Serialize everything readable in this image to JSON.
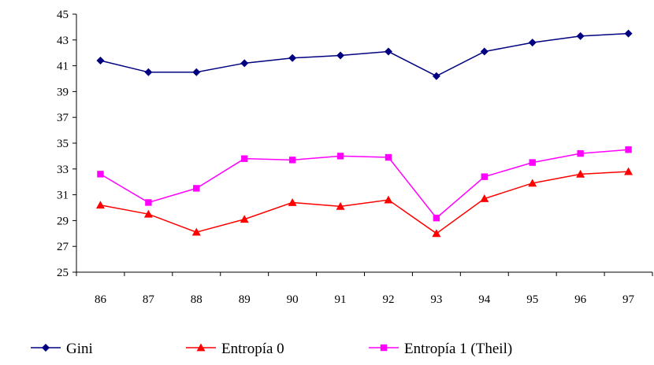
{
  "chart_data": {
    "type": "line",
    "title": "",
    "xlabel": "",
    "ylabel": "",
    "categories": [
      "86",
      "87",
      "88",
      "89",
      "90",
      "91",
      "92",
      "93",
      "94",
      "95",
      "96",
      "97"
    ],
    "ylim": [
      25,
      45
    ],
    "yticks": [
      "25",
      "27",
      "29",
      "31",
      "33",
      "35",
      "37",
      "39",
      "41",
      "43",
      "45"
    ],
    "grid": false,
    "legend_position": "bottom",
    "series": [
      {
        "name": "Gini",
        "color": "#000080",
        "marker": "diamond",
        "values": [
          41.4,
          40.5,
          40.5,
          41.2,
          41.6,
          41.8,
          42.1,
          40.2,
          42.1,
          42.8,
          43.3,
          43.5
        ]
      },
      {
        "name": "Entropía 0",
        "color": "#ff0000",
        "marker": "triangle",
        "values": [
          30.2,
          29.5,
          28.1,
          29.1,
          30.4,
          30.1,
          30.6,
          28.0,
          30.7,
          31.9,
          32.6,
          32.8
        ]
      },
      {
        "name": "Entropía 1 (Theil)",
        "color": "#ff00ff",
        "marker": "square",
        "values": [
          32.6,
          30.4,
          31.5,
          33.8,
          33.7,
          34.0,
          33.9,
          29.2,
          32.4,
          33.5,
          34.2,
          34.5
        ]
      }
    ]
  }
}
